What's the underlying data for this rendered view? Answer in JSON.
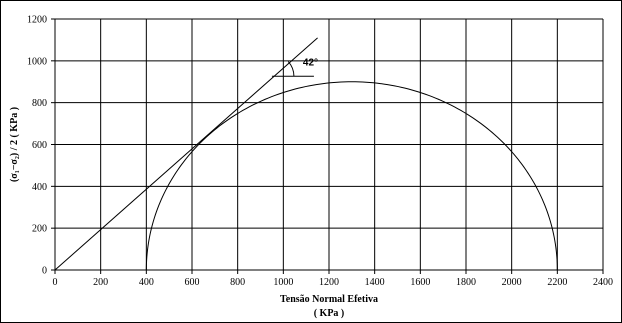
{
  "chart_data": {
    "type": "line",
    "title": "",
    "xlabel": "Tensão Normal Efetiva",
    "xlabel_unit": "( KPa )",
    "ylabel": "(σ₁−σ₂) / 2 ( KPa )",
    "xlim": [
      0,
      2400
    ],
    "ylim": [
      0,
      1200
    ],
    "xticks": [
      0,
      200,
      400,
      600,
      800,
      1000,
      1200,
      1400,
      1600,
      1800,
      2000,
      2200,
      2400
    ],
    "yticks": [
      0,
      200,
      400,
      600,
      800,
      1000,
      1200
    ],
    "grid": true,
    "series": [
      {
        "kind": "mohr-circle",
        "x": [
          400,
          420,
          450,
          500,
          550,
          600,
          650,
          700,
          800,
          900,
          1000,
          1100,
          1200,
          1300,
          1400,
          1500,
          1600,
          1700,
          1800,
          1900,
          2000,
          2050,
          2100,
          2150,
          2180,
          2200
        ],
        "y": [
          0,
          189,
          309,
          434,
          524,
          596,
          656,
          708,
          790,
          848,
          883,
          898,
          898,
          900,
          893,
          872,
          837,
          787,
          718,
          626,
          510,
          424,
          318,
          175,
          75,
          0
        ]
      },
      {
        "kind": "envelope",
        "x": [
          0,
          1150
        ],
        "y": [
          0,
          1110
        ]
      }
    ],
    "annotations": [
      {
        "text": "42°"
      }
    ]
  }
}
